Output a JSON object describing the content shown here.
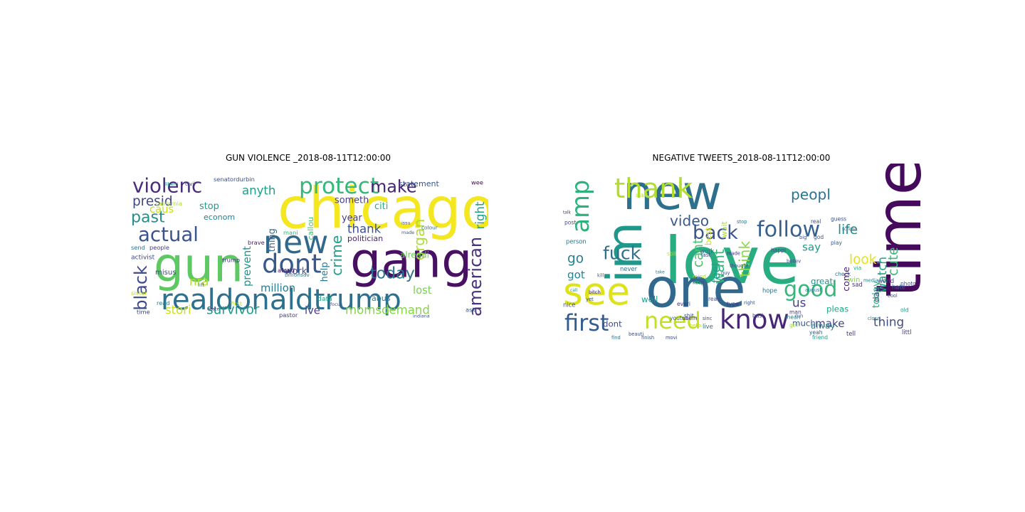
{
  "panels": [
    {
      "title": "GUN VIOLENCE _2018-08-11T12:00:00",
      "words": [
        {
          "t": "chicago",
          "c": "#f4e61f"
        },
        {
          "t": "gang",
          "c": "#471063"
        },
        {
          "t": "gun",
          "c": "#5ec962"
        },
        {
          "t": "realdonaldtrump",
          "c": "#2d708e"
        },
        {
          "t": "new",
          "c": "#31688e"
        },
        {
          "t": "dont",
          "c": "#38598c"
        },
        {
          "t": "protect",
          "c": "#35b779"
        },
        {
          "t": "violenc",
          "c": "#472d7b"
        },
        {
          "t": "actual",
          "c": "#3b528b"
        },
        {
          "t": "past",
          "c": "#21918c"
        },
        {
          "t": "make",
          "c": "#482475"
        },
        {
          "t": "american",
          "c": "#46327e"
        },
        {
          "t": "black",
          "c": "#3e4989"
        },
        {
          "t": "today",
          "c": "#2c728e"
        },
        {
          "t": "presid",
          "c": "#404688"
        },
        {
          "t": "caus",
          "c": "#c2df23"
        },
        {
          "t": "anyth",
          "c": "#1f9e89"
        },
        {
          "t": "crime",
          "c": "#1fa187"
        },
        {
          "t": "thank",
          "c": "#3b528b"
        },
        {
          "t": "organ",
          "c": "#addc30"
        },
        {
          "t": "lost",
          "c": "#7ad151"
        },
        {
          "t": "survivor",
          "c": "#1f9a8a"
        },
        {
          "t": "momsdemand",
          "c": "#86d549"
        },
        {
          "t": "million",
          "c": "#287c8e"
        },
        {
          "t": "ive",
          "c": "#443a83"
        },
        {
          "t": "stori",
          "c": "#c8e020"
        },
        {
          "t": "nra",
          "c": "#b5de2b"
        },
        {
          "t": "stop",
          "c": "#1e9b8a"
        },
        {
          "t": "right",
          "c": "#20a486"
        },
        {
          "t": "prevent",
          "c": "#1f948c"
        },
        {
          "t": "thing",
          "c": "#31688e"
        },
        {
          "t": "work",
          "c": "#3d4e8a"
        },
        {
          "t": "help",
          "c": "#2a788e"
        },
        {
          "t": "someth",
          "c": "#433e85"
        },
        {
          "t": "year",
          "c": "#443983"
        },
        {
          "t": "citi",
          "c": "#25ac82"
        },
        {
          "t": "alreadi",
          "c": "#6ccd5a"
        },
        {
          "t": "statement",
          "c": "#3a548c"
        },
        {
          "t": "econom",
          "c": "#26818e"
        },
        {
          "t": "callou",
          "c": "#4ac16d"
        },
        {
          "t": "politician",
          "c": "#482878"
        },
        {
          "t": "abus",
          "c": "#29798e"
        },
        {
          "t": "misus",
          "c": "#3f4889"
        },
        {
          "t": "activist",
          "c": "#3e4a89"
        },
        {
          "t": "trump",
          "c": "#46337e"
        },
        {
          "t": "afraid",
          "c": "#481769"
        },
        {
          "t": "brave",
          "c": "#481a6c"
        },
        {
          "t": "mani",
          "c": "#32b67a"
        },
        {
          "t": "send",
          "c": "#2e6f8e"
        },
        {
          "t": "people",
          "c": "#433d84"
        },
        {
          "t": "sister",
          "c": "#bddf26"
        },
        {
          "t": "colour",
          "c": "#2f6c8e"
        },
        {
          "t": "issu",
          "c": "#3f4788"
        },
        {
          "t": "made",
          "c": "#365d8d"
        },
        {
          "t": "time",
          "c": "#404588"
        },
        {
          "t": "read",
          "c": "#297b8e"
        },
        {
          "t": "first",
          "c": "#b8de29"
        },
        {
          "t": "pastor",
          "c": "#453781"
        },
        {
          "t": "ask",
          "c": "#3a538b"
        },
        {
          "t": "indiana",
          "c": "#3b518b"
        },
        {
          "t": "state",
          "c": "#46307e"
        },
        {
          "t": "lift",
          "c": "#2c718e"
        },
        {
          "t": "civil",
          "c": "#3e4a89"
        },
        {
          "t": "liberti",
          "c": "#25838e"
        },
        {
          "t": "senatordurbin",
          "c": "#3c4f8a"
        },
        {
          "t": "california",
          "c": "#addc30"
        },
        {
          "t": "billionsav",
          "c": "#287d8e"
        },
        {
          "t": "data",
          "c": "#20a486"
        },
        {
          "t": "focus",
          "c": "#3c508b"
        },
        {
          "t": "wee",
          "c": "#440154"
        }
      ]
    },
    {
      "title": "NEGATIVE TWEETS_2018-08-11T12:00:00",
      "words": [
        {
          "t": "love",
          "c": "#27ad81"
        },
        {
          "t": "time",
          "c": "#450a5c"
        },
        {
          "t": "one",
          "c": "#31688e"
        },
        {
          "t": "new",
          "c": "#2d708e"
        },
        {
          "t": "see",
          "c": "#dde318"
        },
        {
          "t": "im",
          "c": "#1f978b"
        },
        {
          "t": "know",
          "c": "#482576"
        },
        {
          "t": "thank",
          "c": "#b2dd2d"
        },
        {
          "t": "follow",
          "c": "#34618d"
        },
        {
          "t": "back",
          "c": "#3a548c"
        },
        {
          "t": "amp",
          "c": "#2db27d"
        },
        {
          "t": "first",
          "c": "#365c8d"
        },
        {
          "t": "need",
          "c": "#c2df23"
        },
        {
          "t": "good",
          "c": "#35b779"
        },
        {
          "t": "peopl",
          "c": "#2b748e"
        },
        {
          "t": "fuck",
          "c": "#2d708e"
        },
        {
          "t": "video",
          "c": "#37598c"
        },
        {
          "t": "think",
          "c": "#8bd646"
        },
        {
          "t": "want",
          "c": "#34b679"
        },
        {
          "t": "cant",
          "c": "#4ac16d"
        },
        {
          "t": "life",
          "c": "#238a8d"
        },
        {
          "t": "cute",
          "c": "#37b878"
        },
        {
          "t": "watch",
          "c": "#20a386"
        },
        {
          "t": "say",
          "c": "#1f9a8a"
        },
        {
          "t": "look",
          "c": "#e5e419"
        },
        {
          "t": "us",
          "c": "#433e85"
        },
        {
          "t": "make",
          "c": "#404688"
        },
        {
          "t": "thing",
          "c": "#3e4c8a"
        },
        {
          "t": "today",
          "c": "#29af7f"
        },
        {
          "t": "day",
          "c": "#3b528b"
        },
        {
          "t": "pleas",
          "c": "#22a884"
        },
        {
          "t": "go",
          "c": "#287d8e"
        },
        {
          "t": "got",
          "c": "#25848e"
        },
        {
          "t": "feel",
          "c": "#1fa187"
        },
        {
          "t": "dont",
          "c": "#3e4989"
        },
        {
          "t": "well",
          "c": "#1e9b8a"
        },
        {
          "t": "great",
          "c": "#21918c"
        },
        {
          "t": "best",
          "c": "#d0e11c"
        },
        {
          "t": "come",
          "c": "#481c6e"
        },
        {
          "t": "much",
          "c": "#3b528b"
        },
        {
          "t": "alway",
          "c": "#2a788e"
        },
        {
          "t": "live",
          "c": "#2e6f8e"
        },
        {
          "t": "win",
          "c": "#7fd34e"
        },
        {
          "t": "hate",
          "c": "#31688e"
        },
        {
          "t": "cool",
          "c": "#38598c"
        },
        {
          "t": "world",
          "c": "#3e4989"
        },
        {
          "t": "tell",
          "c": "#46337e"
        },
        {
          "t": "friend",
          "c": "#1fa088"
        },
        {
          "t": "littl",
          "c": "#433e85"
        },
        {
          "t": "person",
          "c": "#2a768e"
        },
        {
          "t": "post",
          "c": "#3f4889"
        },
        {
          "t": "talk",
          "c": "#46307e"
        },
        {
          "t": "start",
          "c": "#bddf26"
        },
        {
          "t": "work",
          "c": "#2c728e"
        },
        {
          "t": "last",
          "c": "#3b528b"
        },
        {
          "t": "wait",
          "c": "#a5db36"
        },
        {
          "t": "close",
          "c": "#238a8d"
        },
        {
          "t": "thought",
          "c": "#3f4788"
        },
        {
          "t": "type",
          "c": "#472f7d"
        },
        {
          "t": "read",
          "c": "#3d4e8a"
        },
        {
          "t": "youtub",
          "c": "#375a8c"
        },
        {
          "t": "girl",
          "c": "#a2da37"
        },
        {
          "t": "man",
          "c": "#453781"
        },
        {
          "t": "check",
          "c": "#2c718e"
        },
        {
          "t": "via",
          "c": "#29af7f"
        },
        {
          "t": "sad",
          "c": "#46327e"
        },
        {
          "t": "photo",
          "c": "#3b528b"
        },
        {
          "t": "media",
          "c": "#26818e"
        },
        {
          "t": "play",
          "c": "#37598c"
        },
        {
          "t": "happi",
          "c": "#3e4a89"
        },
        {
          "t": "never",
          "c": "#2e6e8e"
        },
        {
          "t": "everi",
          "c": "#472c7a"
        },
        {
          "t": "shit",
          "c": "#3c4f8a"
        },
        {
          "t": "busi",
          "c": "#3f4889"
        },
        {
          "t": "hope",
          "c": "#2c728e"
        },
        {
          "t": "nice",
          "c": "#3d4e8a"
        },
        {
          "t": "mean",
          "c": "#26828e"
        },
        {
          "t": "guess",
          "c": "#3b528b"
        },
        {
          "t": "schooi",
          "c": "#2f6b8e"
        },
        {
          "t": "yeah",
          "c": "#37598c"
        },
        {
          "t": "old",
          "c": "#1fa088"
        },
        {
          "t": "seem",
          "c": "#46337e"
        },
        {
          "t": "real",
          "c": "#3e4c8a"
        },
        {
          "t": "god",
          "c": "#3b518b"
        },
        {
          "t": "take",
          "c": "#2a768e"
        },
        {
          "t": "still",
          "c": "#bddf26"
        },
        {
          "t": "believ",
          "c": "#3f4788"
        },
        {
          "t": "august",
          "c": "#2c718e"
        },
        {
          "t": "big",
          "c": "#3e4989"
        },
        {
          "t": "finish",
          "c": "#3a548c"
        },
        {
          "t": "movi",
          "c": "#404688"
        },
        {
          "t": "hello",
          "c": "#bddf26"
        },
        {
          "t": "beauti",
          "c": "#3e4989"
        },
        {
          "t": "find",
          "c": "#2e6e8e"
        },
        {
          "t": "call",
          "c": "#238a8d"
        },
        {
          "t": "keep",
          "c": "#3f4889"
        },
        {
          "t": "right",
          "c": "#3b528b"
        },
        {
          "t": "yet",
          "c": "#3e4a89"
        },
        {
          "t": "mind",
          "c": "#addc30"
        },
        {
          "t": "guy",
          "c": "#3b528b"
        },
        {
          "t": "made",
          "c": "#472f7d"
        },
        {
          "t": "kill",
          "c": "#31688e"
        },
        {
          "t": "run",
          "c": "#3e4a89"
        },
        {
          "t": "stop",
          "c": "#2c728e"
        },
        {
          "t": "sinc",
          "c": "#3f4788"
        },
        {
          "t": "bitch",
          "c": "#46307e"
        },
        {
          "t": "reali",
          "c": "#3d4e8a"
        }
      ]
    }
  ]
}
